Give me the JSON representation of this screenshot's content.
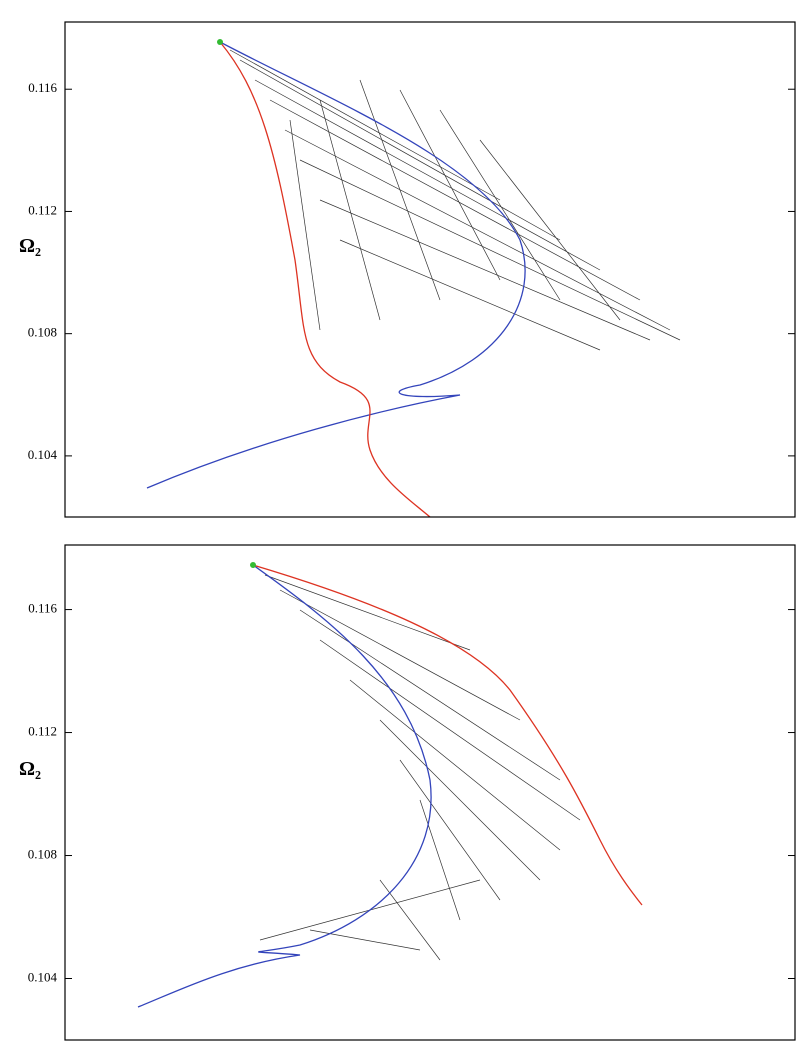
{
  "chart_data": [
    {
      "type": "line",
      "ylabel": "Ω₂",
      "ylim": [
        0.102,
        0.1182
      ],
      "yticks": [
        0.104,
        0.108,
        0.112,
        0.116
      ]
    },
    {
      "type": "line",
      "ylabel": "Ω₂",
      "ylim": [
        0.102,
        0.1181
      ],
      "yticks": [
        0.104,
        0.108,
        0.112,
        0.116
      ]
    }
  ]
}
